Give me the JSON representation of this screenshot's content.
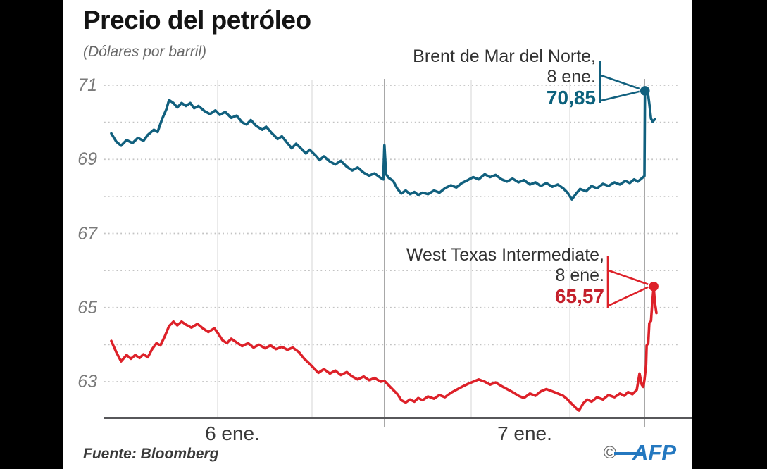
{
  "header": {
    "title": "Precio del petróleo",
    "subtitle": "(Dólares por barril)"
  },
  "footer": {
    "source": "Fuente: Bloomberg",
    "copyright": "©",
    "brand": "AFP"
  },
  "colors": {
    "background_bars": "#000000",
    "panel": "#ffffff",
    "grid_dotted": "#c3c3c3",
    "grid_vertical_light": "#e4e4e4",
    "grid_vertical_medium": "#a8a8a8",
    "axis": "#57575a",
    "brent_line": "#11607e",
    "wti_line": "#dd2129",
    "afp_blue": "#2478c0"
  },
  "chart_data": {
    "type": "line",
    "title": "Precio del petróleo",
    "subtitle": "(Dólares por barril)",
    "ylabel": "Dólares por barril",
    "ylim": [
      62,
      71.6
    ],
    "grid": "dotted horizontal at every integer 63-71",
    "gridlines_y": [
      71,
      70,
      69,
      68,
      67,
      66,
      65,
      64,
      63
    ],
    "yticks": [
      {
        "label": "71",
        "value": 71
      },
      {
        "label": "69",
        "value": 69
      },
      {
        "label": "67",
        "value": 67
      },
      {
        "label": "65",
        "value": 65
      },
      {
        "label": "63",
        "value": 63
      }
    ],
    "xticks": [
      {
        "label": "6 ene.",
        "center_frac": 0.222
      },
      {
        "label": "7 ene.",
        "center_frac": 0.758
      }
    ],
    "legend_position": "annotations at line ends",
    "series": [
      {
        "name": "Brent de Mar del Norte",
        "color": "#11607e",
        "end_dot": {
          "t": 0.979,
          "value": 70.85
        },
        "annotation": {
          "name": "Brent de Mar del Norte,",
          "date": "8 ene.",
          "value_label": "70,85",
          "value_color": "#0c617c"
        },
        "points": [
          [
            0.0,
            69.7
          ],
          [
            0.009,
            69.48
          ],
          [
            0.018,
            69.37
          ],
          [
            0.028,
            69.52
          ],
          [
            0.039,
            69.44
          ],
          [
            0.049,
            69.58
          ],
          [
            0.059,
            69.5
          ],
          [
            0.067,
            69.66
          ],
          [
            0.078,
            69.8
          ],
          [
            0.085,
            69.74
          ],
          [
            0.093,
            70.08
          ],
          [
            0.101,
            70.35
          ],
          [
            0.106,
            70.6
          ],
          [
            0.114,
            70.52
          ],
          [
            0.121,
            70.4
          ],
          [
            0.129,
            70.52
          ],
          [
            0.137,
            70.44
          ],
          [
            0.145,
            70.52
          ],
          [
            0.152,
            70.38
          ],
          [
            0.16,
            70.44
          ],
          [
            0.171,
            70.3
          ],
          [
            0.181,
            70.22
          ],
          [
            0.191,
            70.32
          ],
          [
            0.199,
            70.2
          ],
          [
            0.209,
            70.28
          ],
          [
            0.22,
            70.12
          ],
          [
            0.23,
            70.18
          ],
          [
            0.24,
            70.0
          ],
          [
            0.248,
            69.94
          ],
          [
            0.256,
            70.06
          ],
          [
            0.266,
            69.9
          ],
          [
            0.277,
            69.8
          ],
          [
            0.284,
            69.88
          ],
          [
            0.295,
            69.7
          ],
          [
            0.305,
            69.55
          ],
          [
            0.313,
            69.62
          ],
          [
            0.323,
            69.44
          ],
          [
            0.331,
            69.3
          ],
          [
            0.339,
            69.42
          ],
          [
            0.349,
            69.28
          ],
          [
            0.357,
            69.16
          ],
          [
            0.364,
            69.26
          ],
          [
            0.375,
            69.1
          ],
          [
            0.382,
            68.98
          ],
          [
            0.39,
            69.08
          ],
          [
            0.401,
            68.94
          ],
          [
            0.411,
            68.86
          ],
          [
            0.421,
            68.96
          ],
          [
            0.432,
            68.8
          ],
          [
            0.442,
            68.7
          ],
          [
            0.452,
            68.78
          ],
          [
            0.463,
            68.64
          ],
          [
            0.473,
            68.56
          ],
          [
            0.483,
            68.62
          ],
          [
            0.494,
            68.5
          ],
          [
            0.499,
            68.46
          ],
          [
            0.501,
            69.38
          ],
          [
            0.504,
            68.6
          ],
          [
            0.509,
            68.5
          ],
          [
            0.517,
            68.42
          ],
          [
            0.525,
            68.2
          ],
          [
            0.532,
            68.08
          ],
          [
            0.54,
            68.16
          ],
          [
            0.548,
            68.06
          ],
          [
            0.556,
            68.12
          ],
          [
            0.563,
            68.04
          ],
          [
            0.571,
            68.1
          ],
          [
            0.581,
            68.06
          ],
          [
            0.592,
            68.16
          ],
          [
            0.602,
            68.1
          ],
          [
            0.612,
            68.22
          ],
          [
            0.623,
            68.3
          ],
          [
            0.633,
            68.24
          ],
          [
            0.643,
            68.36
          ],
          [
            0.654,
            68.44
          ],
          [
            0.664,
            68.52
          ],
          [
            0.674,
            68.46
          ],
          [
            0.685,
            68.6
          ],
          [
            0.695,
            68.52
          ],
          [
            0.705,
            68.58
          ],
          [
            0.716,
            68.46
          ],
          [
            0.726,
            68.4
          ],
          [
            0.736,
            68.48
          ],
          [
            0.747,
            68.38
          ],
          [
            0.757,
            68.44
          ],
          [
            0.768,
            68.32
          ],
          [
            0.778,
            68.38
          ],
          [
            0.788,
            68.28
          ],
          [
            0.798,
            68.36
          ],
          [
            0.809,
            68.26
          ],
          [
            0.819,
            68.32
          ],
          [
            0.829,
            68.22
          ],
          [
            0.837,
            68.1
          ],
          [
            0.845,
            67.92
          ],
          [
            0.853,
            68.08
          ],
          [
            0.86,
            68.2
          ],
          [
            0.871,
            68.14
          ],
          [
            0.881,
            68.28
          ],
          [
            0.891,
            68.22
          ],
          [
            0.902,
            68.34
          ],
          [
            0.912,
            68.28
          ],
          [
            0.923,
            68.38
          ],
          [
            0.933,
            68.32
          ],
          [
            0.943,
            68.42
          ],
          [
            0.951,
            68.36
          ],
          [
            0.959,
            68.46
          ],
          [
            0.966,
            68.4
          ],
          [
            0.974,
            68.5
          ],
          [
            0.978,
            68.55
          ],
          [
            0.979,
            70.85
          ],
          [
            0.985,
            70.72
          ],
          [
            0.987,
            70.5
          ],
          [
            0.99,
            70.1
          ],
          [
            0.993,
            70.02
          ],
          [
            0.997,
            70.08
          ]
        ]
      },
      {
        "name": "West Texas Intermediate",
        "color": "#dd2129",
        "end_dot": {
          "t": 0.995,
          "value": 65.57
        },
        "annotation": {
          "name": "West Texas Intermediate,",
          "date": "8 ene.",
          "value_label": "65,57",
          "value_color": "#c4202b"
        },
        "points": [
          [
            0.0,
            64.1
          ],
          [
            0.009,
            63.8
          ],
          [
            0.018,
            63.55
          ],
          [
            0.028,
            63.72
          ],
          [
            0.036,
            63.62
          ],
          [
            0.044,
            63.72
          ],
          [
            0.052,
            63.64
          ],
          [
            0.059,
            63.74
          ],
          [
            0.067,
            63.66
          ],
          [
            0.075,
            63.88
          ],
          [
            0.083,
            64.04
          ],
          [
            0.09,
            63.98
          ],
          [
            0.098,
            64.22
          ],
          [
            0.106,
            64.5
          ],
          [
            0.114,
            64.62
          ],
          [
            0.121,
            64.52
          ],
          [
            0.129,
            64.62
          ],
          [
            0.137,
            64.54
          ],
          [
            0.147,
            64.46
          ],
          [
            0.158,
            64.56
          ],
          [
            0.168,
            64.44
          ],
          [
            0.178,
            64.34
          ],
          [
            0.189,
            64.44
          ],
          [
            0.196,
            64.3
          ],
          [
            0.204,
            64.12
          ],
          [
            0.212,
            64.04
          ],
          [
            0.22,
            64.16
          ],
          [
            0.23,
            64.06
          ],
          [
            0.24,
            63.96
          ],
          [
            0.251,
            64.04
          ],
          [
            0.261,
            63.92
          ],
          [
            0.271,
            64.0
          ],
          [
            0.282,
            63.9
          ],
          [
            0.292,
            63.98
          ],
          [
            0.302,
            63.88
          ],
          [
            0.313,
            63.94
          ],
          [
            0.323,
            63.86
          ],
          [
            0.333,
            63.92
          ],
          [
            0.344,
            63.8
          ],
          [
            0.354,
            63.62
          ],
          [
            0.364,
            63.48
          ],
          [
            0.372,
            63.36
          ],
          [
            0.38,
            63.24
          ],
          [
            0.39,
            63.34
          ],
          [
            0.401,
            63.22
          ],
          [
            0.411,
            63.3
          ],
          [
            0.421,
            63.18
          ],
          [
            0.432,
            63.26
          ],
          [
            0.442,
            63.14
          ],
          [
            0.452,
            63.06
          ],
          [
            0.463,
            63.14
          ],
          [
            0.473,
            63.04
          ],
          [
            0.483,
            63.1
          ],
          [
            0.494,
            63.0
          ],
          [
            0.501,
            63.02
          ],
          [
            0.509,
            62.9
          ],
          [
            0.517,
            62.78
          ],
          [
            0.525,
            62.66
          ],
          [
            0.532,
            62.5
          ],
          [
            0.54,
            62.44
          ],
          [
            0.548,
            62.52
          ],
          [
            0.556,
            62.46
          ],
          [
            0.563,
            62.56
          ],
          [
            0.571,
            62.5
          ],
          [
            0.581,
            62.6
          ],
          [
            0.592,
            62.54
          ],
          [
            0.602,
            62.64
          ],
          [
            0.612,
            62.58
          ],
          [
            0.623,
            62.7
          ],
          [
            0.633,
            62.78
          ],
          [
            0.643,
            62.86
          ],
          [
            0.654,
            62.94
          ],
          [
            0.664,
            63.0
          ],
          [
            0.674,
            63.06
          ],
          [
            0.685,
            63.0
          ],
          [
            0.695,
            62.92
          ],
          [
            0.705,
            62.98
          ],
          [
            0.716,
            62.88
          ],
          [
            0.726,
            62.8
          ],
          [
            0.736,
            62.72
          ],
          [
            0.747,
            62.62
          ],
          [
            0.757,
            62.56
          ],
          [
            0.768,
            62.68
          ],
          [
            0.778,
            62.62
          ],
          [
            0.788,
            62.74
          ],
          [
            0.798,
            62.8
          ],
          [
            0.809,
            62.74
          ],
          [
            0.819,
            62.68
          ],
          [
            0.829,
            62.62
          ],
          [
            0.837,
            62.52
          ],
          [
            0.845,
            62.4
          ],
          [
            0.853,
            62.28
          ],
          [
            0.858,
            62.22
          ],
          [
            0.866,
            62.42
          ],
          [
            0.873,
            62.52
          ],
          [
            0.881,
            62.46
          ],
          [
            0.891,
            62.58
          ],
          [
            0.902,
            62.52
          ],
          [
            0.912,
            62.64
          ],
          [
            0.923,
            62.58
          ],
          [
            0.933,
            62.68
          ],
          [
            0.941,
            62.62
          ],
          [
            0.948,
            62.72
          ],
          [
            0.956,
            62.66
          ],
          [
            0.964,
            62.78
          ],
          [
            0.969,
            63.22
          ],
          [
            0.973,
            62.92
          ],
          [
            0.976,
            62.86
          ],
          [
            0.978,
            63.05
          ],
          [
            0.981,
            63.45
          ],
          [
            0.982,
            63.98
          ],
          [
            0.985,
            64.04
          ],
          [
            0.987,
            64.58
          ],
          [
            0.99,
            64.64
          ],
          [
            0.992,
            65.05
          ],
          [
            0.995,
            65.57
          ],
          [
            0.997,
            65.15
          ],
          [
            1.0,
            64.85
          ]
        ]
      }
    ]
  }
}
